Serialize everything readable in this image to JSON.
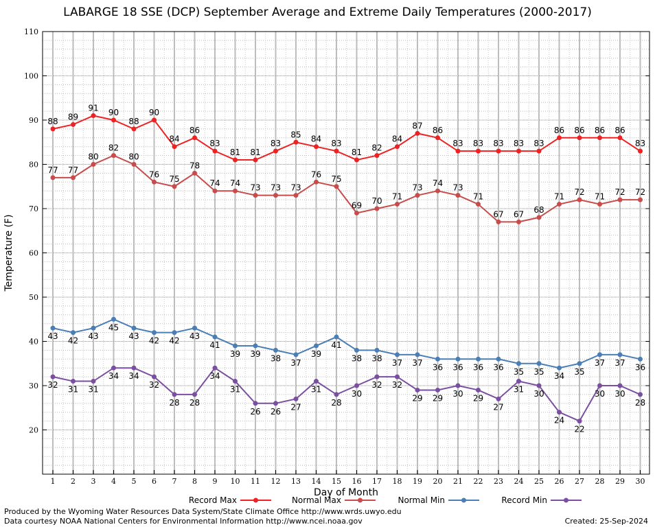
{
  "chart_data": {
    "type": "line",
    "title": "LABARGE 18 SSE (DCP) September Average and Extreme Daily Temperatures (2000-2017)",
    "xlabel": "Day of Month",
    "ylabel": "Temperature (F)",
    "ylim": [
      10,
      110
    ],
    "yticks": [
      20,
      30,
      40,
      50,
      60,
      70,
      80,
      90,
      100,
      110
    ],
    "x": [
      1,
      2,
      3,
      4,
      5,
      6,
      7,
      8,
      9,
      10,
      11,
      12,
      13,
      14,
      15,
      16,
      17,
      18,
      19,
      20,
      21,
      22,
      23,
      24,
      25,
      26,
      27,
      28,
      29,
      30
    ],
    "grid": true,
    "legend_position": "bottom",
    "series": [
      {
        "name": "Record Max",
        "color": "#ee2222",
        "label_pos": "above",
        "values": [
          88,
          89,
          91,
          90,
          88,
          90,
          84,
          86,
          83,
          81,
          81,
          83,
          85,
          84,
          83,
          81,
          82,
          84,
          87,
          86,
          83,
          83,
          83,
          83,
          83,
          86,
          86,
          86,
          86,
          83
        ]
      },
      {
        "name": "Normal Max",
        "color": "#c84c4c",
        "label_pos": "above",
        "values": [
          77,
          77,
          80,
          82,
          80,
          76,
          75,
          78,
          74,
          74,
          73,
          73,
          73,
          76,
          75,
          69,
          70,
          71,
          73,
          74,
          73,
          71,
          67,
          67,
          68,
          71,
          72,
          71,
          72,
          72
        ]
      },
      {
        "name": "Normal Min",
        "color": "#4a7eb4",
        "label_pos": "below",
        "values": [
          43,
          42,
          43,
          45,
          43,
          42,
          42,
          43,
          41,
          39,
          39,
          38,
          37,
          39,
          41,
          38,
          38,
          37,
          37,
          36,
          36,
          36,
          36,
          35,
          35,
          34,
          35,
          37,
          37,
          36
        ]
      },
      {
        "name": "Record Min",
        "color": "#7a4ea0",
        "label_pos": "below",
        "values": [
          32,
          31,
          31,
          34,
          34,
          32,
          28,
          28,
          34,
          31,
          26,
          26,
          27,
          31,
          28,
          30,
          32,
          32,
          29,
          29,
          30,
          29,
          27,
          31,
          30,
          24,
          22,
          30,
          30,
          28
        ]
      }
    ]
  },
  "footer": {
    "line1": "Produced by the Wyoming Water Resources Data System/State Climate Office http://www.wrds.uwyo.edu",
    "line2": "Data courtesy NOAA National Centers for Environmental Information http://www.ncei.noaa.gov",
    "created": "Created:  25-Sep-2024"
  }
}
